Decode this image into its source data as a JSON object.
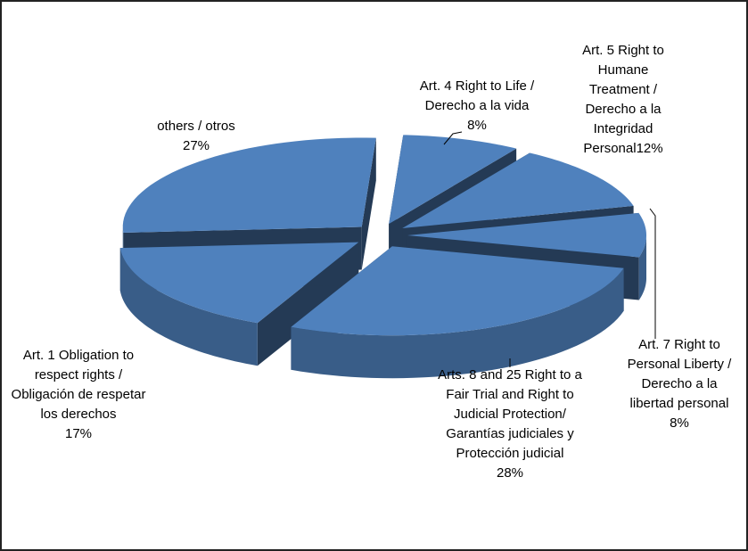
{
  "chart_data": {
    "type": "pie",
    "categories": [
      "Art. 4 Right to Life / Derecho a la vida",
      "Art. 5 Right to Humane Treatment / Derecho a la Integridad Personal",
      "Art. 7 Right to Personal Liberty / Derecho a la libertad personal",
      "Arts. 8 and 25 Right to a Fair Trial and Right to Judicial Protection/ Garantías judiciales y Protección judicial",
      "Art. 1 Obligation to respect rights / Obligación de respetar los derechos",
      "others / otros"
    ],
    "values": [
      8,
      12,
      8,
      28,
      17,
      27
    ],
    "value_labels": [
      "8%",
      "12%",
      "8%",
      "28%",
      "17%",
      "27%"
    ],
    "color": "#4f81bd"
  }
}
